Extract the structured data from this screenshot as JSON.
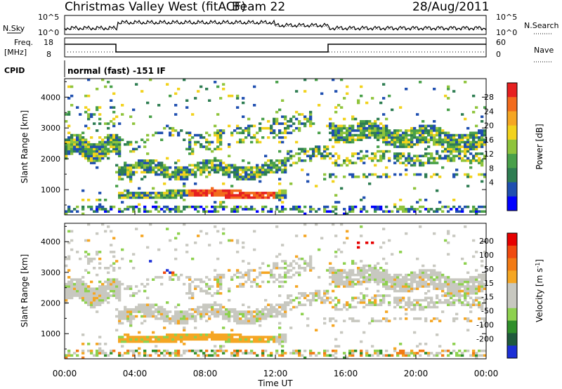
{
  "header": {
    "station": "Christmas Valley West (fitACF)",
    "beam": "Beam 22",
    "date": "28/Aug/2011"
  },
  "panels": {
    "nsky_label": "N.Sky",
    "nsearch_label": "N.Search",
    "freq_label_1": "Freq.",
    "freq_label_2": "[MHz]",
    "nave_label": "Nave",
    "cpid_label": "CPID",
    "cpid_text": "normal (fast) -151 IF",
    "nsky_ticks": [
      "10^5",
      "10^0"
    ],
    "nsearch_ticks": [
      "10^5",
      "10^0"
    ],
    "freq_ticks": [
      "18",
      "8"
    ],
    "nave_ticks": [
      "60",
      "0"
    ]
  },
  "colors": {
    "power_scale": [
      "#0000ff",
      "#1f4fb0",
      "#2e7d52",
      "#49a04a",
      "#8fc43c",
      "#f2d21c",
      "#f5a623",
      "#f26b1d",
      "#e62020"
    ],
    "velocity_scale": [
      "#1c2fd6",
      "#1f5a3c",
      "#2f8f2a",
      "#8ed14f",
      "#c8c8c0",
      "#c8c8c0",
      "#f5a623",
      "#f27a14",
      "#f04a0f",
      "#e60000"
    ]
  },
  "chart_data": [
    {
      "type": "heatmap",
      "name": "power",
      "xlabel": "Time UT",
      "ylabel": "Slant Range [km]",
      "x_ticks": [
        "00:00",
        "04:00",
        "08:00",
        "12:00",
        "16:00",
        "20:00",
        "00:00"
      ],
      "xlim": [
        0,
        24
      ],
      "y_ticks": [
        "4000",
        "3000",
        "2000",
        "1000"
      ],
      "ylim": [
        180,
        4600
      ],
      "colorbar_label": "Power [dB]",
      "colorbar_ticks": [
        "28",
        "24",
        "20",
        "16",
        "12",
        "8",
        "4"
      ],
      "zlim": [
        0,
        32
      ]
    },
    {
      "type": "heatmap",
      "name": "velocity",
      "xlabel": "Time UT",
      "ylabel": "Slant Range [km]",
      "x_ticks": [
        "00:00",
        "04:00",
        "08:00",
        "12:00",
        "16:00",
        "20:00",
        "00:00"
      ],
      "xlim": [
        0,
        24
      ],
      "y_ticks": [
        "4000",
        "3000",
        "2000",
        "1000"
      ],
      "ylim": [
        180,
        4600
      ],
      "colorbar_label": "Velocity [m s-1]",
      "colorbar_ticks": [
        "200",
        "100",
        "50",
        "15",
        "-15",
        "-50",
        "-100",
        "-200"
      ],
      "zlim": [
        -250,
        250
      ]
    }
  ]
}
